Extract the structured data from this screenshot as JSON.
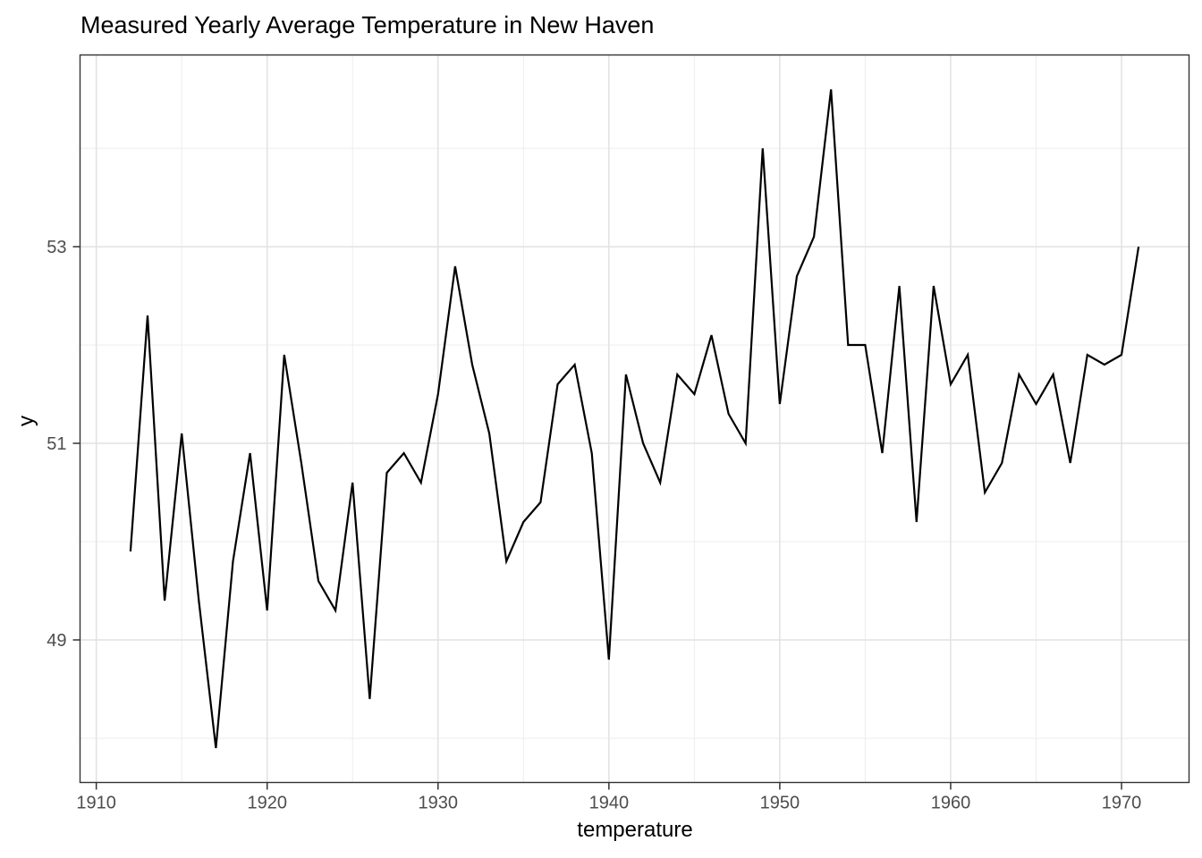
{
  "chart_data": {
    "type": "line",
    "title": "Measured Yearly Average Temperature in New Haven",
    "xlabel": "temperature",
    "ylabel": "y",
    "x": [
      1912,
      1913,
      1914,
      1915,
      1916,
      1917,
      1918,
      1919,
      1920,
      1921,
      1922,
      1923,
      1924,
      1925,
      1926,
      1927,
      1928,
      1929,
      1930,
      1931,
      1932,
      1933,
      1934,
      1935,
      1936,
      1937,
      1938,
      1939,
      1940,
      1941,
      1942,
      1943,
      1944,
      1945,
      1946,
      1947,
      1948,
      1949,
      1950,
      1951,
      1952,
      1953,
      1954,
      1955,
      1956,
      1957,
      1958,
      1959,
      1960,
      1961,
      1962,
      1963,
      1964,
      1965,
      1966,
      1967,
      1968,
      1969,
      1970,
      1971
    ],
    "values": [
      49.9,
      52.3,
      49.4,
      51.1,
      49.4,
      47.9,
      49.8,
      50.9,
      49.3,
      51.9,
      50.8,
      49.6,
      49.3,
      50.6,
      48.4,
      50.7,
      50.9,
      50.6,
      51.5,
      52.8,
      51.8,
      51.1,
      49.8,
      50.2,
      50.4,
      51.6,
      51.8,
      50.9,
      48.8,
      51.7,
      51.0,
      50.6,
      51.7,
      51.5,
      52.1,
      51.3,
      51.0,
      54.0,
      51.4,
      52.7,
      53.1,
      54.6,
      52.0,
      52.0,
      50.9,
      52.6,
      50.2,
      52.6,
      51.6,
      51.9,
      50.5,
      50.8,
      51.7,
      51.4,
      51.7,
      50.8,
      51.9,
      51.8,
      51.9,
      53.0
    ],
    "xlim": [
      1909.05,
      1973.95
    ],
    "ylim": [
      47.55,
      54.95
    ],
    "x_ticks": [
      1910,
      1920,
      1930,
      1940,
      1950,
      1960,
      1970
    ],
    "x_tick_labels": [
      "1910",
      "1920",
      "1930",
      "1940",
      "1950",
      "1960",
      "1970"
    ],
    "y_ticks": [
      49,
      51,
      53
    ],
    "y_tick_labels": [
      "49",
      "51",
      "53"
    ],
    "x_minor_ticks": [
      1915,
      1925,
      1935,
      1945,
      1955,
      1965
    ],
    "y_minor_ticks": [
      48,
      50,
      52,
      54
    ],
    "grid": "on",
    "legend": "none",
    "colors": {
      "line": "#000000",
      "panel_background": "#ffffff",
      "panel_border": "#333333",
      "grid_major": "#e2e2e2",
      "grid_minor": "#ededed",
      "tick_mark": "#333333",
      "tick_label": "#4d4d4d",
      "title": "#000000",
      "axis_title": "#000000"
    }
  }
}
